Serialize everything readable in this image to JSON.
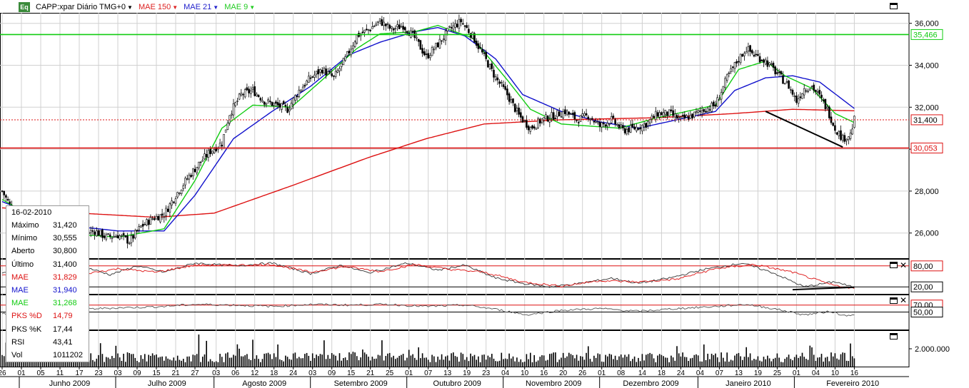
{
  "header": {
    "symbol_label": "CAPP:xpar Diário TMG+0",
    "mae150_label": "MAE 150",
    "mae21_label": "MAE 21",
    "mae9_label": "MAE 9",
    "icon_text": "Eq"
  },
  "colors": {
    "price": "#000000",
    "mae150": "#dd1111",
    "mae21": "#1111cc",
    "mae9": "#11cc11",
    "resistance": "#11cc11",
    "support": "#dd1111",
    "grid": "#d0d0d0"
  },
  "info_box": {
    "date": "16-02-2010",
    "rows": [
      {
        "k": "Máximo",
        "v": "31,420",
        "color": "#000000"
      },
      {
        "k": "Mínimo",
        "v": "30,555",
        "color": "#000000"
      },
      {
        "k": "Aberto",
        "v": "30,800",
        "color": "#000000"
      },
      {
        "k": "Último",
        "v": "31,400",
        "color": "#000000"
      },
      {
        "k": "MAE",
        "v": "31,829",
        "color": "#dd1111"
      },
      {
        "k": "MAE",
        "v": "31,940",
        "color": "#1111cc"
      },
      {
        "k": "MAE",
        "v": "31,268",
        "color": "#11cc11"
      },
      {
        "k": "PKS %D",
        "v": "14,79",
        "color": "#dd1111"
      },
      {
        "k": "PKS %K",
        "v": "17,44",
        "color": "#000000"
      },
      {
        "k": "RSI",
        "v": "43,41",
        "color": "#000000"
      },
      {
        "k": "Vol",
        "v": "1011202",
        "color": "#000000"
      }
    ]
  },
  "chart_data": [
    {
      "type": "candlestick",
      "title": "CAPP:xpar Diário TMG+0",
      "ylim": [
        24800,
        36500
      ],
      "y_ticks": [
        "26,000",
        "28,000",
        "30,000",
        "32,000",
        "34,000",
        "36,000"
      ],
      "y_tick_values": [
        26000,
        28000,
        30000,
        32000,
        34000,
        36000
      ],
      "price_labels": [
        {
          "text": "35,466",
          "value": 35466,
          "kind": "resistance"
        },
        {
          "text": "31,400",
          "value": 31400,
          "kind": "last"
        },
        {
          "text": "30,053",
          "value": 30053,
          "kind": "support"
        }
      ],
      "x_day_ticks": [
        "26",
        "01",
        "05",
        "11",
        "17",
        "23",
        "03",
        "09",
        "15",
        "21",
        "27",
        "03",
        "06",
        "12",
        "18",
        "24",
        "03",
        "09",
        "15",
        "21",
        "25",
        "01",
        "07",
        "13",
        "19",
        "23",
        "04",
        "10",
        "16",
        "20",
        "26",
        "01",
        "08",
        "14",
        "18",
        "24",
        "04",
        "07",
        "13",
        "19",
        "25",
        "01",
        "04",
        "10",
        "16"
      ],
      "x_month_labels": [
        "Junho 2009",
        "Julho 2009",
        "Agosto 2009",
        "Setembro 2009",
        "Outubro 2009",
        "Novembro 2009",
        "Dezembro 2009",
        "Janeiro 2010",
        "Fevereiro 2010"
      ],
      "anchors_close": [
        [
          0,
          28000
        ],
        [
          6,
          27000
        ],
        [
          12,
          26300
        ],
        [
          18,
          26000
        ],
        [
          24,
          25400
        ],
        [
          30,
          25900
        ],
        [
          36,
          26200
        ],
        [
          42,
          26000
        ],
        [
          48,
          26100
        ],
        [
          54,
          25800
        ],
        [
          60,
          25900
        ],
        [
          66,
          25600
        ],
        [
          72,
          26300
        ],
        [
          78,
          26700
        ],
        [
          84,
          26900
        ],
        [
          90,
          27800
        ],
        [
          96,
          28600
        ],
        [
          102,
          29300
        ],
        [
          108,
          29900
        ],
        [
          114,
          30300
        ],
        [
          118,
          31700
        ],
        [
          124,
          32600
        ],
        [
          130,
          32800
        ],
        [
          136,
          32300
        ],
        [
          142,
          32100
        ],
        [
          148,
          31900
        ],
        [
          154,
          32800
        ],
        [
          160,
          33400
        ],
        [
          166,
          33800
        ],
        [
          172,
          33400
        ],
        [
          178,
          34300
        ],
        [
          184,
          35400
        ],
        [
          190,
          35700
        ],
        [
          196,
          36100
        ],
        [
          202,
          35700
        ],
        [
          208,
          35900
        ],
        [
          214,
          35300
        ],
        [
          220,
          34400
        ],
        [
          226,
          35000
        ],
        [
          232,
          35700
        ],
        [
          238,
          36100
        ],
        [
          244,
          35400
        ],
        [
          250,
          34400
        ],
        [
          256,
          33400
        ],
        [
          262,
          32600
        ],
        [
          268,
          31600
        ],
        [
          274,
          31000
        ],
        [
          280,
          31400
        ],
        [
          286,
          31600
        ],
        [
          292,
          31800
        ],
        [
          298,
          31400
        ],
        [
          304,
          31600
        ],
        [
          310,
          31100
        ],
        [
          316,
          31400
        ],
        [
          322,
          30900
        ],
        [
          328,
          31000
        ],
        [
          334,
          31200
        ],
        [
          340,
          31700
        ],
        [
          346,
          31700
        ],
        [
          352,
          31400
        ],
        [
          358,
          31600
        ],
        [
          364,
          31900
        ],
        [
          370,
          32100
        ],
        [
          376,
          33400
        ],
        [
          382,
          34300
        ],
        [
          386,
          34800
        ],
        [
          390,
          34500
        ],
        [
          396,
          34200
        ],
        [
          402,
          33600
        ],
        [
          408,
          33000
        ],
        [
          412,
          32300
        ],
        [
          416,
          32900
        ],
        [
          420,
          33000
        ],
        [
          424,
          32500
        ],
        [
          428,
          31900
        ],
        [
          432,
          31000
        ],
        [
          436,
          30500
        ],
        [
          440,
          30700
        ],
        [
          442,
          31400
        ]
      ],
      "series": [
        {
          "name": "MAE 150",
          "anchors": [
            [
              0,
              27200
            ],
            [
              40,
              26950
            ],
            [
              80,
              26750
            ],
            [
              110,
              26950
            ],
            [
              150,
              28250
            ],
            [
              190,
              29600
            ],
            [
              220,
              30500
            ],
            [
              250,
              31200
            ],
            [
              290,
              31400
            ],
            [
              340,
              31500
            ],
            [
              380,
              31700
            ],
            [
              410,
              31900
            ],
            [
              442,
              31829
            ]
          ]
        },
        {
          "name": "MAE 21",
          "anchors": [
            [
              0,
              27500
            ],
            [
              30,
              26400
            ],
            [
              60,
              26100
            ],
            [
              84,
              26100
            ],
            [
              100,
              27800
            ],
            [
              120,
              30500
            ],
            [
              140,
              31800
            ],
            [
              160,
              33000
            ],
            [
              180,
              34500
            ],
            [
              196,
              35100
            ],
            [
              214,
              35600
            ],
            [
              226,
              35800
            ],
            [
              240,
              35400
            ],
            [
              256,
              34300
            ],
            [
              270,
              32600
            ],
            [
              290,
              31800
            ],
            [
              310,
              31300
            ],
            [
              330,
              31000
            ],
            [
              350,
              31400
            ],
            [
              370,
              31800
            ],
            [
              380,
              32800
            ],
            [
              396,
              33400
            ],
            [
              410,
              33500
            ],
            [
              424,
              33200
            ],
            [
              442,
              31940
            ]
          ]
        },
        {
          "name": "MAE 9",
          "anchors": [
            [
              0,
              27600
            ],
            [
              30,
              26000
            ],
            [
              60,
              25800
            ],
            [
              84,
              26200
            ],
            [
              100,
              28500
            ],
            [
              114,
              31000
            ],
            [
              130,
              32100
            ],
            [
              150,
              32000
            ],
            [
              166,
              33300
            ],
            [
              184,
              34800
            ],
            [
              196,
              35500
            ],
            [
              214,
              35600
            ],
            [
              226,
              35900
            ],
            [
              244,
              35300
            ],
            [
              262,
              33300
            ],
            [
              274,
              31900
            ],
            [
              290,
              31200
            ],
            [
              320,
              31000
            ],
            [
              340,
              31500
            ],
            [
              370,
              32100
            ],
            [
              382,
              33800
            ],
            [
              396,
              34200
            ],
            [
              406,
              33500
            ],
            [
              420,
              32900
            ],
            [
              432,
              31700
            ],
            [
              442,
              31268
            ]
          ]
        }
      ],
      "volume_axis_tick": "2.000.000"
    },
    {
      "type": "line",
      "name": "PKS",
      "ylim": [
        0,
        100
      ],
      "y_ticks": [
        "80,00",
        "20,00"
      ],
      "y_tick_values": [
        80,
        20
      ],
      "series": [
        {
          "name": "PKS %K",
          "anchors": [
            [
              0,
              60
            ],
            [
              14,
              75
            ],
            [
              28,
              50
            ],
            [
              42,
              78
            ],
            [
              56,
              55
            ],
            [
              70,
              80
            ],
            [
              84,
              62
            ],
            [
              100,
              88
            ],
            [
              120,
              80
            ],
            [
              140,
              88
            ],
            [
              160,
              58
            ],
            [
              176,
              82
            ],
            [
              190,
              60
            ],
            [
              210,
              88
            ],
            [
              226,
              68
            ],
            [
              240,
              82
            ],
            [
              256,
              45
            ],
            [
              270,
              30
            ],
            [
              284,
              20
            ],
            [
              300,
              30
            ],
            [
              316,
              45
            ],
            [
              330,
              30
            ],
            [
              346,
              45
            ],
            [
              364,
              70
            ],
            [
              384,
              88
            ],
            [
              400,
              60
            ],
            [
              416,
              20
            ],
            [
              432,
              35
            ],
            [
              442,
              17.44
            ]
          ]
        },
        {
          "name": "PKS %D",
          "anchors": [
            [
              0,
              55
            ],
            [
              20,
              70
            ],
            [
              40,
              55
            ],
            [
              60,
              72
            ],
            [
              80,
              62
            ],
            [
              100,
              82
            ],
            [
              120,
              82
            ],
            [
              140,
              84
            ],
            [
              160,
              62
            ],
            [
              178,
              78
            ],
            [
              196,
              64
            ],
            [
              214,
              84
            ],
            [
              232,
              70
            ],
            [
              250,
              62
            ],
            [
              270,
              34
            ],
            [
              290,
              22
            ],
            [
              310,
              38
            ],
            [
              330,
              34
            ],
            [
              350,
              42
            ],
            [
              370,
              72
            ],
            [
              390,
              84
            ],
            [
              410,
              62
            ],
            [
              430,
              26
            ],
            [
              442,
              14.79
            ]
          ]
        }
      ]
    },
    {
      "type": "line",
      "name": "RSI",
      "ylim": [
        0,
        100
      ],
      "y_ticks": [
        "70,00",
        "50,00"
      ],
      "y_tick_values": [
        70,
        50
      ],
      "series": [
        {
          "name": "RSI",
          "anchors": [
            [
              0,
              45
            ],
            [
              20,
              50
            ],
            [
              40,
              58
            ],
            [
              60,
              62
            ],
            [
              80,
              65
            ],
            [
              100,
              72
            ],
            [
              120,
              70
            ],
            [
              140,
              66
            ],
            [
              160,
              72
            ],
            [
              180,
              70
            ],
            [
              200,
              72
            ],
            [
              220,
              66
            ],
            [
              240,
              70
            ],
            [
              256,
              58
            ],
            [
              272,
              42
            ],
            [
              290,
              55
            ],
            [
              310,
              60
            ],
            [
              330,
              52
            ],
            [
              350,
              60
            ],
            [
              370,
              66
            ],
            [
              386,
              72
            ],
            [
              400,
              60
            ],
            [
              416,
              42
            ],
            [
              430,
              52
            ],
            [
              436,
              40
            ],
            [
              442,
              43.41
            ]
          ]
        }
      ]
    }
  ]
}
